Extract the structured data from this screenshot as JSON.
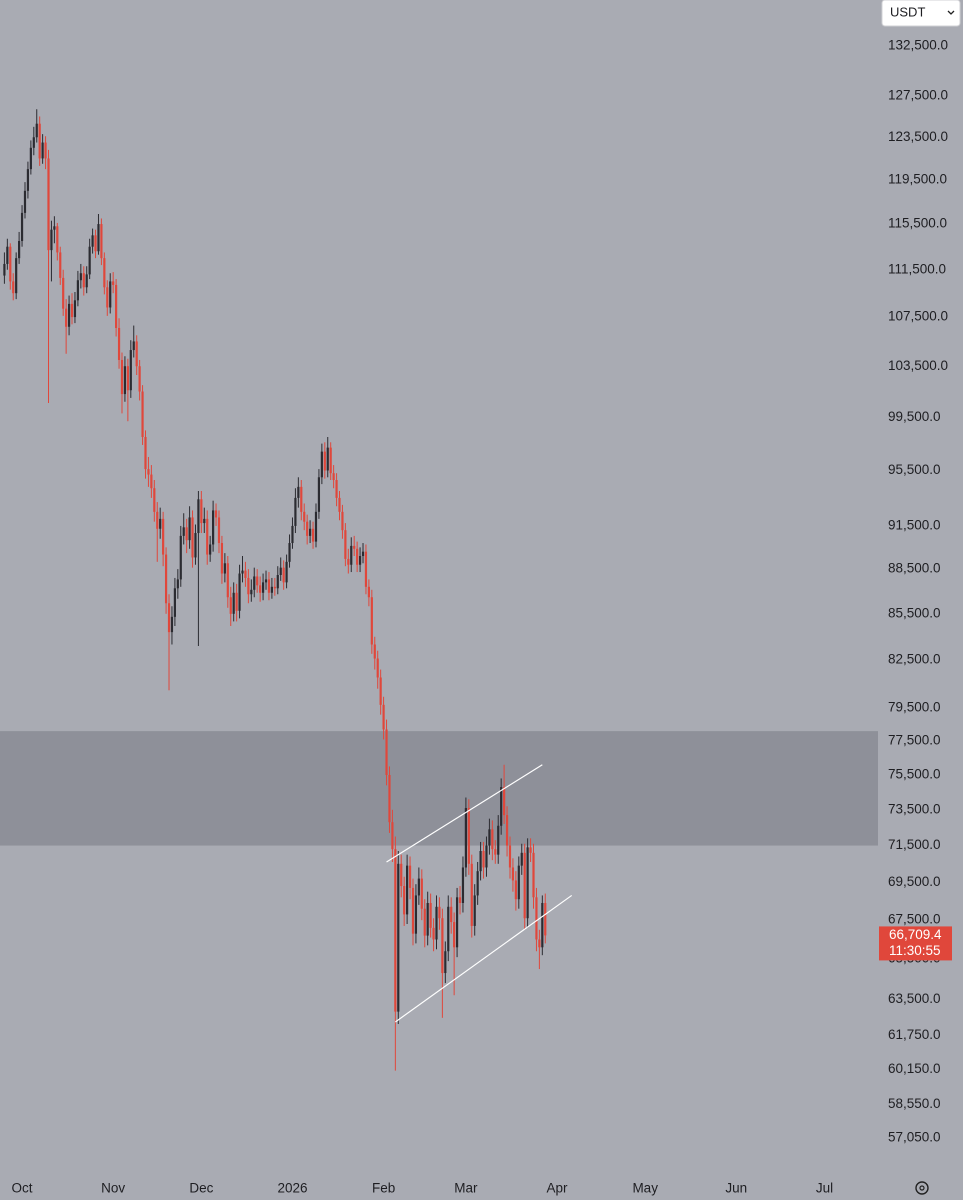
{
  "currency": "USDT",
  "chart_data": {
    "type": "candlestick",
    "log_scale": true,
    "up_color": "#2b2b31",
    "down_color": "#e0473b",
    "background": "#a9abb3",
    "xlim": [
      -1.5,
      297.2
    ],
    "xticks": [
      {
        "value": 6,
        "label": "Oct"
      },
      {
        "value": 37,
        "label": "Nov"
      },
      {
        "value": 67,
        "label": "Dec"
      },
      {
        "value": 98,
        "label": "2026"
      },
      {
        "value": 129,
        "label": "Feb"
      },
      {
        "value": 157,
        "label": "Mar"
      },
      {
        "value": 188,
        "label": "Apr"
      },
      {
        "value": 218,
        "label": "May"
      },
      {
        "value": 249,
        "label": "Jun"
      },
      {
        "value": 279,
        "label": "Jul"
      }
    ],
    "ylim": [
      55750,
      137300
    ],
    "yticks": [
      {
        "value": 132500,
        "label": "132,500.0"
      },
      {
        "value": 127500,
        "label": "127,500.0"
      },
      {
        "value": 123500,
        "label": "123,500.0"
      },
      {
        "value": 119500,
        "label": "119,500.0"
      },
      {
        "value": 115500,
        "label": "115,500.0"
      },
      {
        "value": 111500,
        "label": "111,500.0"
      },
      {
        "value": 107500,
        "label": "107,500.0"
      },
      {
        "value": 103500,
        "label": "103,500.0"
      },
      {
        "value": 99500,
        "label": "99,500.0"
      },
      {
        "value": 95500,
        "label": "95,500.0"
      },
      {
        "value": 91500,
        "label": "91,500.0"
      },
      {
        "value": 88500,
        "label": "88,500.0"
      },
      {
        "value": 85500,
        "label": "85,500.0"
      },
      {
        "value": 82500,
        "label": "82,500.0"
      },
      {
        "value": 79500,
        "label": "79,500.0"
      },
      {
        "value": 77500,
        "label": "77,500.0"
      },
      {
        "value": 75500,
        "label": "75,500.0"
      },
      {
        "value": 73500,
        "label": "73,500.0"
      },
      {
        "value": 71500,
        "label": "71,500.0"
      },
      {
        "value": 69500,
        "label": "69,500.0"
      },
      {
        "value": 67500,
        "label": "67,500.0"
      },
      {
        "value": 65500,
        "label": "65,500.0"
      },
      {
        "value": 63500,
        "label": "63,500.0"
      },
      {
        "value": 61750,
        "label": "61,750.0"
      },
      {
        "value": 60150,
        "label": "60,150.0"
      },
      {
        "value": 58550,
        "label": "58,550.0"
      },
      {
        "value": 57050,
        "label": "57,050.0"
      }
    ],
    "zone": {
      "range": [
        71500,
        78100
      ],
      "color": "#8e9099"
    },
    "trendlines": [
      {
        "color": "#ffffff",
        "points": [
          [
            130,
            70600
          ],
          [
            183,
            76100
          ]
        ]
      },
      {
        "color": "#ffffff",
        "points": [
          [
            133,
            62400
          ],
          [
            193,
            68800
          ]
        ]
      }
    ],
    "last_price": {
      "value": 66709.4,
      "label": "66,709.4",
      "color": "#e0473b"
    },
    "countdown": "11:30:55",
    "ohlc": [
      [
        111000,
        113000,
        110300,
        112000
      ],
      [
        112000,
        114200,
        111500,
        113500
      ],
      [
        113500,
        113800,
        109800,
        110500
      ],
      [
        110500,
        111200,
        108900,
        109500
      ],
      [
        109500,
        113000,
        109000,
        112500
      ],
      [
        112500,
        114800,
        112000,
        114000
      ],
      [
        114000,
        117200,
        113500,
        116500
      ],
      [
        116500,
        119300,
        116000,
        118500
      ],
      [
        118500,
        121200,
        117800,
        120500
      ],
      [
        120500,
        123200,
        120000,
        122500
      ],
      [
        122500,
        124500,
        121800,
        123500
      ],
      [
        123500,
        126200,
        123000,
        124800
      ],
      [
        124800,
        125500,
        120800,
        121500
      ],
      [
        121500,
        123800,
        121000,
        123000
      ],
      [
        123000,
        123600,
        120500,
        121500
      ],
      [
        121500,
        122300,
        100600,
        113200
      ],
      [
        113200,
        115800,
        110500,
        115000
      ],
      [
        115000,
        116200,
        113800,
        115300
      ],
      [
        115300,
        115600,
        112300,
        113000
      ],
      [
        113000,
        113500,
        110200,
        110800
      ],
      [
        110800,
        111500,
        107600,
        108200
      ],
      [
        108200,
        109000,
        104500,
        106700
      ],
      [
        106700,
        109300,
        106000,
        108600
      ],
      [
        108600,
        109500,
        106900,
        107500
      ],
      [
        107500,
        109600,
        107000,
        108900
      ],
      [
        108900,
        111400,
        108400,
        110600
      ],
      [
        110600,
        112000,
        109900,
        111200
      ],
      [
        111200,
        111800,
        109300,
        110000
      ],
      [
        110000,
        111800,
        109500,
        111100
      ],
      [
        111100,
        114200,
        110700,
        113500
      ],
      [
        113500,
        115100,
        112900,
        114500
      ],
      [
        114500,
        115000,
        112500,
        113100
      ],
      [
        113100,
        116400,
        112800,
        115500
      ],
      [
        115500,
        116000,
        111900,
        112500
      ],
      [
        112500,
        113000,
        109400,
        110000
      ],
      [
        110000,
        110600,
        107600,
        108300
      ],
      [
        108300,
        111200,
        107800,
        110500
      ],
      [
        110500,
        111300,
        109500,
        110200
      ],
      [
        110200,
        110700,
        105900,
        106600
      ],
      [
        106600,
        107400,
        103300,
        104000
      ],
      [
        104000,
        104600,
        99800,
        101300
      ],
      [
        101300,
        104300,
        100700,
        103500
      ],
      [
        103500,
        104100,
        99200,
        101600
      ],
      [
        101600,
        105600,
        101000,
        104800
      ],
      [
        104800,
        106800,
        104200,
        105500
      ],
      [
        105500,
        106000,
        102800,
        103500
      ],
      [
        103500,
        104000,
        100800,
        101500
      ],
      [
        101500,
        102000,
        97400,
        98000
      ],
      [
        98000,
        98500,
        94900,
        95600
      ],
      [
        95600,
        96500,
        94300,
        95200
      ],
      [
        95200,
        95900,
        93500,
        94200
      ],
      [
        94200,
        94800,
        91800,
        92500
      ],
      [
        92500,
        93200,
        89000,
        91300
      ],
      [
        91300,
        92800,
        90600,
        92000
      ],
      [
        92000,
        92500,
        88700,
        89500
      ],
      [
        89500,
        90000,
        85500,
        86200
      ],
      [
        86200,
        86800,
        80600,
        84300
      ],
      [
        84300,
        86000,
        83500,
        85300
      ],
      [
        85300,
        87900,
        84700,
        87200
      ],
      [
        87200,
        88500,
        86500,
        87800
      ],
      [
        87800,
        91500,
        87300,
        90800
      ],
      [
        90800,
        92400,
        90200,
        91400
      ],
      [
        91400,
        92000,
        89600,
        90500
      ],
      [
        90500,
        92900,
        89900,
        92100
      ],
      [
        92100,
        92600,
        88600,
        89300
      ],
      [
        89300,
        91600,
        88800,
        91000
      ],
      [
        91000,
        94000,
        83400,
        93400
      ],
      [
        93400,
        94000,
        91000,
        91700
      ],
      [
        91700,
        92800,
        91000,
        92000
      ],
      [
        92000,
        92600,
        88800,
        89500
      ],
      [
        89500,
        90800,
        89000,
        90200
      ],
      [
        90200,
        93300,
        89700,
        92600
      ],
      [
        92600,
        93100,
        91500,
        92100
      ],
      [
        92100,
        92600,
        89600,
        90300
      ],
      [
        90300,
        90800,
        87500,
        88200
      ],
      [
        88200,
        89600,
        87600,
        88900
      ],
      [
        88900,
        89400,
        85900,
        86600
      ],
      [
        86600,
        87300,
        84700,
        85500
      ],
      [
        85500,
        87600,
        85000,
        86900
      ],
      [
        86900,
        87500,
        85000,
        85700
      ],
      [
        85700,
        88800,
        85200,
        88200
      ],
      [
        88200,
        89400,
        87600,
        88400
      ],
      [
        88400,
        89000,
        87300,
        87900
      ],
      [
        87900,
        88500,
        86200,
        86800
      ],
      [
        86800,
        87800,
        86300,
        87100
      ],
      [
        87100,
        88600,
        86600,
        88000
      ],
      [
        88000,
        88500,
        86900,
        87400
      ],
      [
        87400,
        88000,
        86300,
        86900
      ],
      [
        86900,
        88200,
        86400,
        87600
      ],
      [
        87600,
        88400,
        87100,
        87800
      ],
      [
        87800,
        88300,
        86400,
        86900
      ],
      [
        86900,
        87900,
        86500,
        87300
      ],
      [
        87300,
        87900,
        86700,
        87200
      ],
      [
        87200,
        88700,
        86800,
        88100
      ],
      [
        88100,
        89300,
        87700,
        88600
      ],
      [
        88600,
        89100,
        87100,
        87600
      ],
      [
        87600,
        89500,
        87200,
        89000
      ],
      [
        89000,
        90900,
        88600,
        90300
      ],
      [
        90300,
        92100,
        89900,
        91500
      ],
      [
        91500,
        94200,
        91000,
        93500
      ],
      [
        93500,
        95000,
        92800,
        94300
      ],
      [
        94300,
        94800,
        91900,
        92500
      ],
      [
        92500,
        93100,
        91200,
        91800
      ],
      [
        91800,
        92300,
        90200,
        90800
      ],
      [
        90800,
        91900,
        90300,
        91300
      ],
      [
        91300,
        91800,
        89900,
        90400
      ],
      [
        90400,
        93100,
        90000,
        92500
      ],
      [
        92500,
        95600,
        92000,
        95000
      ],
      [
        95000,
        97500,
        94500,
        96900
      ],
      [
        96900,
        97600,
        94900,
        95500
      ],
      [
        95500,
        98000,
        95000,
        97200
      ],
      [
        97200,
        97600,
        94800,
        95300
      ],
      [
        95300,
        95900,
        94200,
        94800
      ],
      [
        94800,
        95300,
        92900,
        93500
      ],
      [
        93500,
        94000,
        91900,
        92500
      ],
      [
        92500,
        93000,
        90600,
        91200
      ],
      [
        91200,
        91700,
        88700,
        89200
      ],
      [
        89200,
        89900,
        88200,
        88800
      ],
      [
        88800,
        90700,
        88300,
        90100
      ],
      [
        90100,
        90800,
        89400,
        89900
      ],
      [
        89900,
        90400,
        88300,
        88800
      ],
      [
        88800,
        90000,
        88300,
        89400
      ],
      [
        89400,
        90300,
        88900,
        89700
      ],
      [
        89700,
        90200,
        86800,
        87300
      ],
      [
        87300,
        87800,
        86000,
        86600
      ],
      [
        86600,
        87100,
        82900,
        83500
      ],
      [
        83500,
        84000,
        81900,
        82600
      ],
      [
        82600,
        83100,
        80700,
        81400
      ],
      [
        81400,
        81900,
        79100,
        79700
      ],
      [
        79700,
        80200,
        77600,
        78200
      ],
      [
        78200,
        78800,
        74900,
        75500
      ],
      [
        75500,
        76000,
        72200,
        72800
      ],
      [
        72800,
        73500,
        70600,
        71300
      ],
      [
        71300,
        72000,
        60100,
        62900
      ],
      [
        62900,
        71200,
        62300,
        70500
      ],
      [
        70500,
        71000,
        68700,
        69300
      ],
      [
        69300,
        69800,
        67200,
        67800
      ],
      [
        67800,
        71000,
        67300,
        70400
      ],
      [
        70400,
        70900,
        68600,
        69200
      ],
      [
        69200,
        69700,
        66200,
        66800
      ],
      [
        66800,
        69400,
        66300,
        68800
      ],
      [
        68800,
        70300,
        68300,
        69700
      ],
      [
        69700,
        70200,
        67500,
        68100
      ],
      [
        68100,
        68600,
        66100,
        66700
      ],
      [
        66700,
        69000,
        66200,
        68400
      ],
      [
        68400,
        68900,
        66600,
        67100
      ],
      [
        67100,
        67600,
        65900,
        66500
      ],
      [
        66500,
        68800,
        66000,
        68200
      ],
      [
        68200,
        68700,
        67000,
        67600
      ],
      [
        67600,
        68100,
        62600,
        64800
      ],
      [
        64800,
        66400,
        64300,
        65900
      ],
      [
        65900,
        68800,
        65400,
        68200
      ],
      [
        68200,
        68700,
        66800,
        67400
      ],
      [
        67400,
        67900,
        63700,
        66100
      ],
      [
        66100,
        69200,
        65600,
        68700
      ],
      [
        68700,
        69300,
        67800,
        68400
      ],
      [
        68400,
        70900,
        67900,
        70300
      ],
      [
        70300,
        74200,
        69800,
        73600
      ],
      [
        73600,
        74100,
        69900,
        70500
      ],
      [
        70500,
        71000,
        66600,
        67200
      ],
      [
        67200,
        69400,
        66700,
        68800
      ],
      [
        68800,
        70600,
        68300,
        70100
      ],
      [
        70100,
        71700,
        69600,
        71200
      ],
      [
        71200,
        71700,
        69700,
        70300
      ],
      [
        70300,
        72000,
        69800,
        71500
      ],
      [
        71500,
        73000,
        71000,
        72400
      ],
      [
        72400,
        72900,
        70700,
        71300
      ],
      [
        71300,
        71800,
        70500,
        71000
      ],
      [
        71000,
        73200,
        70500,
        72600
      ],
      [
        72600,
        75300,
        72100,
        74800
      ],
      [
        74800,
        76100,
        72700,
        73200
      ],
      [
        73200,
        73700,
        70900,
        71500
      ],
      [
        71500,
        72000,
        69700,
        70300
      ],
      [
        70300,
        70800,
        69000,
        69600
      ],
      [
        69600,
        70100,
        68000,
        68600
      ],
      [
        68600,
        70900,
        68100,
        70400
      ],
      [
        70400,
        71600,
        69900,
        71100
      ],
      [
        71100,
        71600,
        67000,
        67600
      ],
      [
        67600,
        71900,
        67100,
        71400
      ],
      [
        71400,
        71900,
        70600,
        71100
      ],
      [
        71100,
        71600,
        68100,
        68700
      ],
      [
        68700,
        69200,
        65900,
        66500
      ],
      [
        66500,
        67000,
        65000,
        66100
      ],
      [
        66100,
        68800,
        65700,
        68400
      ],
      [
        68400,
        68900,
        66300,
        66709.4
      ]
    ]
  }
}
